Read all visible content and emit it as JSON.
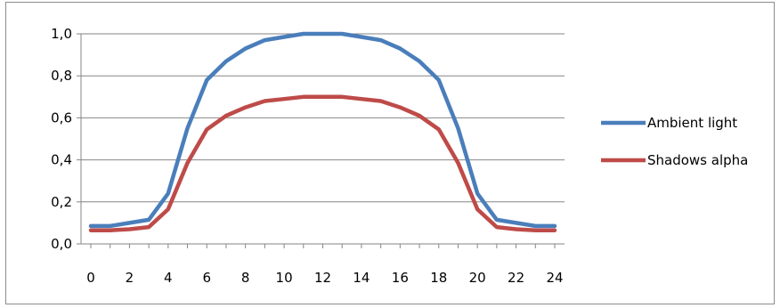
{
  "chart_data": {
    "type": "line",
    "x": [
      0,
      1,
      2,
      3,
      4,
      5,
      6,
      7,
      8,
      9,
      10,
      11,
      12,
      13,
      14,
      15,
      16,
      17,
      18,
      19,
      20,
      21,
      22,
      23,
      24
    ],
    "xticks": [
      0,
      2,
      4,
      6,
      8,
      10,
      12,
      14,
      16,
      18,
      20,
      22,
      24
    ],
    "yticks": [
      "0,0",
      "0,2",
      "0,4",
      "0,6",
      "0,8",
      "1,0"
    ],
    "ylim": [
      0,
      1.0
    ],
    "xlim": [
      0,
      24
    ],
    "grid": "horizontal",
    "legend_position": "right",
    "series": [
      {
        "name": "Ambient light",
        "color": "#4a7ebb",
        "values": [
          0.085,
          0.085,
          0.1,
          0.115,
          0.24,
          0.55,
          0.78,
          0.87,
          0.93,
          0.97,
          0.985,
          1.0,
          1.0,
          1.0,
          0.985,
          0.97,
          0.93,
          0.87,
          0.78,
          0.55,
          0.24,
          0.115,
          0.1,
          0.085,
          0.085
        ]
      },
      {
        "name": "Shadows alpha",
        "color": "#be4b48",
        "values": [
          0.065,
          0.065,
          0.07,
          0.08,
          0.165,
          0.385,
          0.545,
          0.61,
          0.65,
          0.68,
          0.69,
          0.7,
          0.7,
          0.7,
          0.69,
          0.68,
          0.65,
          0.61,
          0.545,
          0.385,
          0.165,
          0.08,
          0.07,
          0.065,
          0.065
        ]
      }
    ]
  }
}
